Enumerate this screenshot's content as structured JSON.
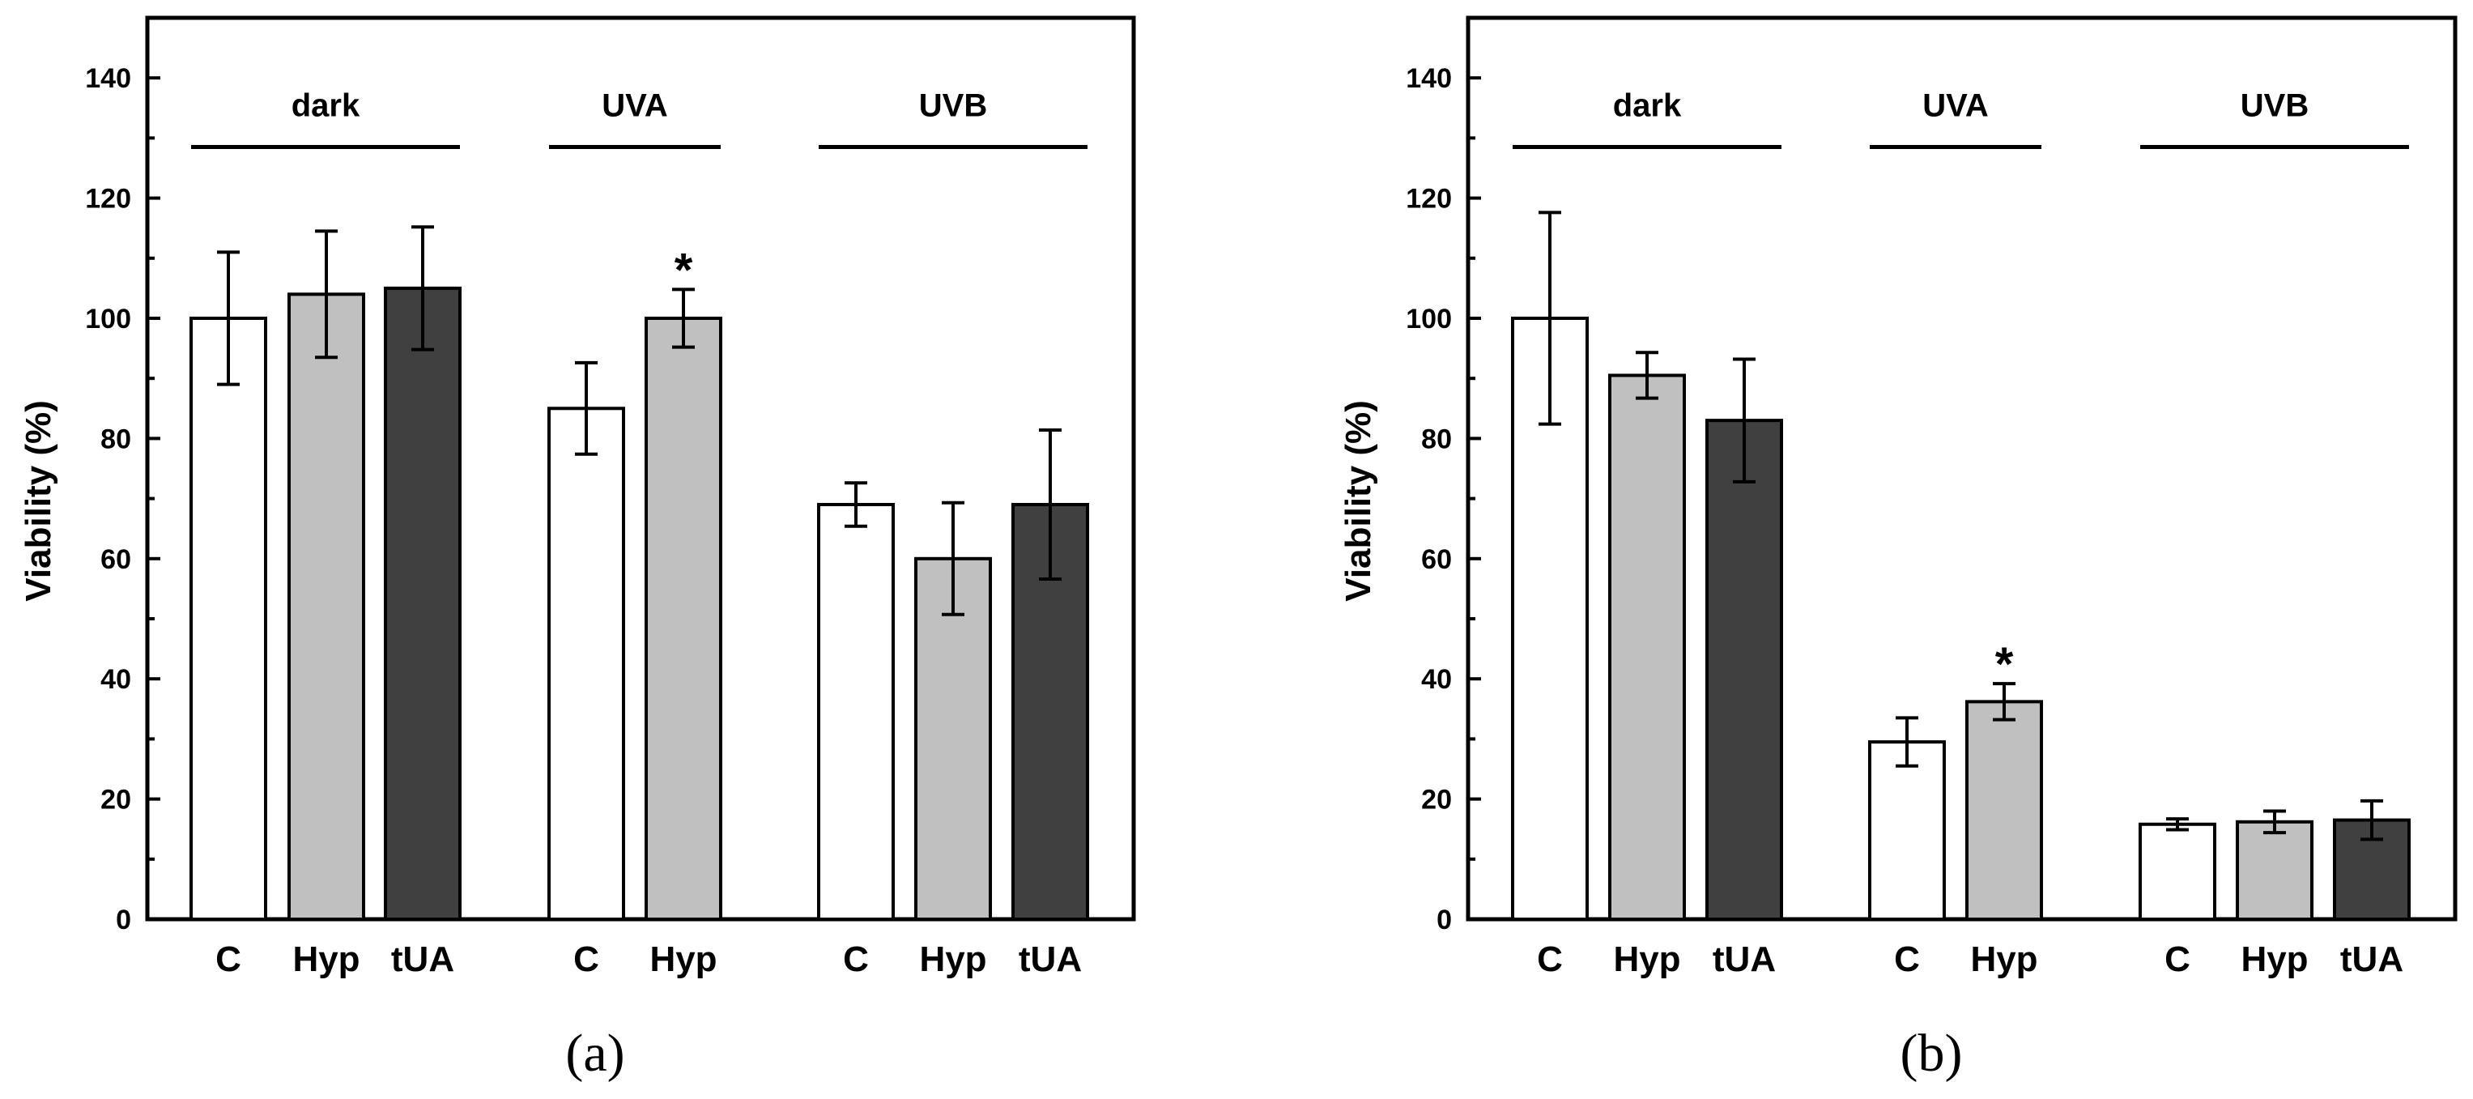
{
  "chart_data": [
    {
      "type": "bar",
      "panel_label": "(a)",
      "ylabel": "Viability   (%)",
      "ylim": [
        0,
        150
      ],
      "yticks": [
        "0",
        "20",
        "40",
        "60",
        "80",
        "100",
        "120",
        "140"
      ],
      "groups": [
        {
          "label": "dark",
          "bars": [
            {
              "category": "C",
              "value": 100,
              "error": 11,
              "fill": "#ffffff",
              "significant": false
            },
            {
              "category": "Hyp",
              "value": 104,
              "error": 10.5,
              "fill": "#c0c0c0",
              "significant": false
            },
            {
              "category": "tUA",
              "value": 105,
              "error": 10.2,
              "fill": "#404040",
              "significant": false
            }
          ]
        },
        {
          "label": "UVA",
          "bars": [
            {
              "category": "C",
              "value": 85,
              "error": 7.6,
              "fill": "#ffffff",
              "significant": false
            },
            {
              "category": "Hyp",
              "value": 100,
              "error": 4.8,
              "fill": "#c0c0c0",
              "significant": true,
              "marker": "*"
            }
          ]
        },
        {
          "label": "UVB",
          "bars": [
            {
              "category": "C",
              "value": 69,
              "error": 3.6,
              "fill": "#ffffff",
              "significant": false
            },
            {
              "category": "Hyp",
              "value": 60,
              "error": 9.3,
              "fill": "#c0c0c0",
              "significant": false
            },
            {
              "category": "tUA",
              "value": 69,
              "error": 12.4,
              "fill": "#404040",
              "significant": false
            }
          ]
        }
      ]
    },
    {
      "type": "bar",
      "panel_label": "(b)",
      "ylabel": "Viability   (%)",
      "ylim": [
        0,
        150
      ],
      "yticks": [
        "0",
        "20",
        "40",
        "60",
        "80",
        "100",
        "120",
        "140"
      ],
      "groups": [
        {
          "label": "dark",
          "bars": [
            {
              "category": "C",
              "value": 100,
              "error": 17.6,
              "fill": "#ffffff",
              "significant": false
            },
            {
              "category": "Hyp",
              "value": 90.5,
              "error": 3.8,
              "fill": "#c0c0c0",
              "significant": false
            },
            {
              "category": "tUA",
              "value": 83,
              "error": 10.2,
              "fill": "#404040",
              "significant": false
            }
          ]
        },
        {
          "label": "UVA",
          "bars": [
            {
              "category": "C",
              "value": 29.5,
              "error": 4,
              "fill": "#ffffff",
              "significant": false
            },
            {
              "category": "Hyp",
              "value": 36.2,
              "error": 3,
              "fill": "#c0c0c0",
              "significant": true,
              "marker": "*"
            }
          ]
        },
        {
          "label": "UVB",
          "bars": [
            {
              "category": "C",
              "value": 15.8,
              "error": 0.9,
              "fill": "#ffffff",
              "significant": false
            },
            {
              "category": "Hyp",
              "value": 16.2,
              "error": 1.8,
              "fill": "#c0c0c0",
              "significant": false
            },
            {
              "category": "tUA",
              "value": 16.5,
              "error": 3.2,
              "fill": "#404040",
              "significant": false
            }
          ]
        }
      ]
    }
  ]
}
